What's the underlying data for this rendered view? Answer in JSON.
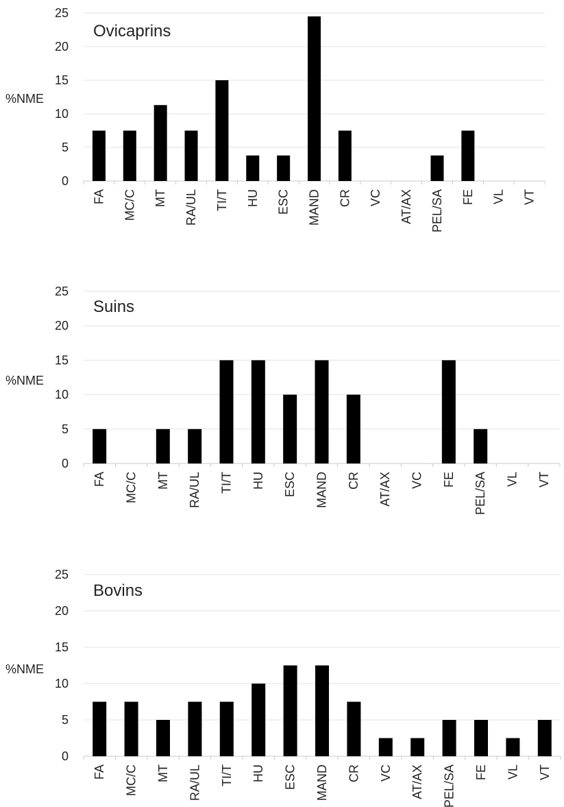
{
  "chart_data": [
    {
      "type": "bar",
      "title": "Ovicaprins",
      "ylabel": "%NME",
      "xlabel": "",
      "ylim": [
        0,
        25
      ],
      "yticks": [
        "0",
        "5",
        "10",
        "15",
        "20",
        "25"
      ],
      "grid": true,
      "categories": [
        "FA",
        "MC/C",
        "MT",
        "RA/UL",
        "TI/T",
        "HU",
        "ESC",
        "MAND",
        "CR",
        "VC",
        "AT/AX",
        "PEL/SA",
        "FE",
        "VL",
        "VT"
      ],
      "values": [
        7.5,
        7.5,
        11.3,
        7.5,
        15,
        3.8,
        3.8,
        24.5,
        7.5,
        0,
        0,
        3.8,
        7.5,
        0,
        0
      ]
    },
    {
      "type": "bar",
      "title": "Suins",
      "ylabel": "%NME",
      "xlabel": "",
      "ylim": [
        0,
        25
      ],
      "yticks": [
        "0",
        "5",
        "10",
        "15",
        "20",
        "25"
      ],
      "grid": true,
      "categories": [
        "FA",
        "MC/C",
        "MT",
        "RA/UL",
        "TI/T",
        "HU",
        "ESC",
        "MAND",
        "CR",
        "AT/AX",
        "VC",
        "FE",
        "PEL/SA",
        "VL",
        "VT"
      ],
      "values": [
        5,
        0,
        5,
        5,
        15,
        15,
        10,
        15,
        10,
        0,
        0,
        15,
        5,
        0,
        0
      ]
    },
    {
      "type": "bar",
      "title": "Bovins",
      "ylabel": "%NME",
      "xlabel": "",
      "ylim": [
        0,
        25
      ],
      "yticks": [
        "0",
        "5",
        "10",
        "15",
        "20",
        "25"
      ],
      "grid": true,
      "categories": [
        "FA",
        "MC/C",
        "MT",
        "RA/UL",
        "TI/T",
        "HU",
        "ESC",
        "MAND",
        "CR",
        "VC",
        "AT/AX",
        "PEL/SA",
        "FE",
        "VL",
        "VT"
      ],
      "values": [
        7.5,
        7.5,
        5,
        7.5,
        7.5,
        10,
        12.5,
        12.5,
        7.5,
        2.5,
        2.5,
        5,
        5,
        2.5,
        5
      ]
    }
  ]
}
